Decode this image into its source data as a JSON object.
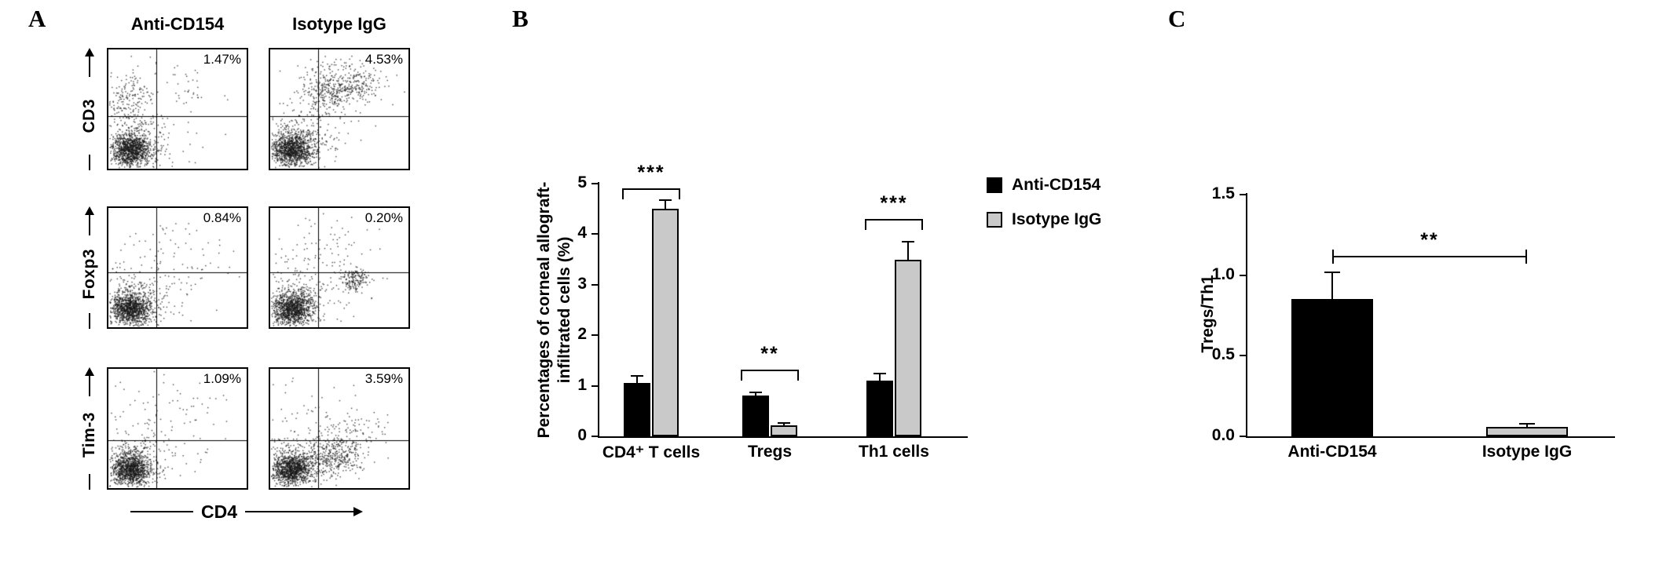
{
  "panels": {
    "a": {
      "label": "A",
      "col_headers": [
        "Anti-CD154",
        "Isotype IgG"
      ],
      "rows": [
        {
          "label": "CD3"
        },
        {
          "label": "Foxp3"
        },
        {
          "label": "Tim-3"
        }
      ],
      "x_axis_label": "CD4",
      "plots": [
        {
          "row": "CD3",
          "condition": "Anti-CD154",
          "percent": "1.47%"
        },
        {
          "row": "CD3",
          "condition": "Isotype IgG",
          "percent": "4.53%"
        },
        {
          "row": "Foxp3",
          "condition": "Anti-CD154",
          "percent": "0.84%"
        },
        {
          "row": "Foxp3",
          "condition": "Isotype IgG",
          "percent": "0.20%"
        },
        {
          "row": "Tim-3",
          "condition": "Anti-CD154",
          "percent": "1.09%"
        },
        {
          "row": "Tim-3",
          "condition": "Isotype IgG",
          "percent": "3.59%"
        }
      ]
    },
    "b": {
      "label": "B"
    },
    "c": {
      "label": "C"
    }
  },
  "chart_data": [
    {
      "id": "panel-b",
      "type": "bar",
      "ylabel_lines": [
        "Percentages of corneal allograft-",
        "infiltrated cells (%)"
      ],
      "categories": [
        "CD4⁺ T cells",
        "Tregs",
        "Th1 cells"
      ],
      "series": [
        {
          "name": "Anti-CD154",
          "color": "#000000",
          "values": [
            1.05,
            0.8,
            1.1
          ],
          "errors": [
            0.15,
            0.07,
            0.15
          ]
        },
        {
          "name": "Isotype IgG",
          "color": "#c9c9c9",
          "values": [
            4.5,
            0.22,
            3.5
          ],
          "errors": [
            0.18,
            0.04,
            0.35
          ]
        }
      ],
      "ylim": [
        0,
        5
      ],
      "yticks": [
        0,
        1,
        2,
        3,
        4,
        5
      ],
      "ytick_labels": [
        "0",
        "1",
        "2",
        "3",
        "4",
        "5"
      ],
      "significance": [
        {
          "category_index": 0,
          "stars": "***",
          "line_value": 4.9
        },
        {
          "category_index": 1,
          "stars": "**",
          "line_value": 1.32
        },
        {
          "category_index": 2,
          "stars": "***",
          "line_value": 4.3
        }
      ],
      "legend_position": "right",
      "grid": false
    },
    {
      "id": "panel-c",
      "type": "bar",
      "ylabel_lines": [
        "Tregs/Th1"
      ],
      "categories": [
        "Anti-CD154",
        "Isotype IgG"
      ],
      "series": [
        {
          "name": "",
          "colors": [
            "#000000",
            "#c9c9c9"
          ],
          "values": [
            0.85,
            0.06
          ],
          "errors": [
            0.17,
            0.02
          ]
        }
      ],
      "ylim": [
        0,
        1.5
      ],
      "yticks": [
        0,
        0.5,
        1,
        1.5
      ],
      "ytick_labels": [
        "0.0",
        "0.5",
        "1.0",
        "1.5"
      ],
      "significance": [
        {
          "from_index": 0,
          "to_index": 1,
          "stars": "**",
          "line_value": 1.12
        }
      ],
      "grid": false
    }
  ]
}
